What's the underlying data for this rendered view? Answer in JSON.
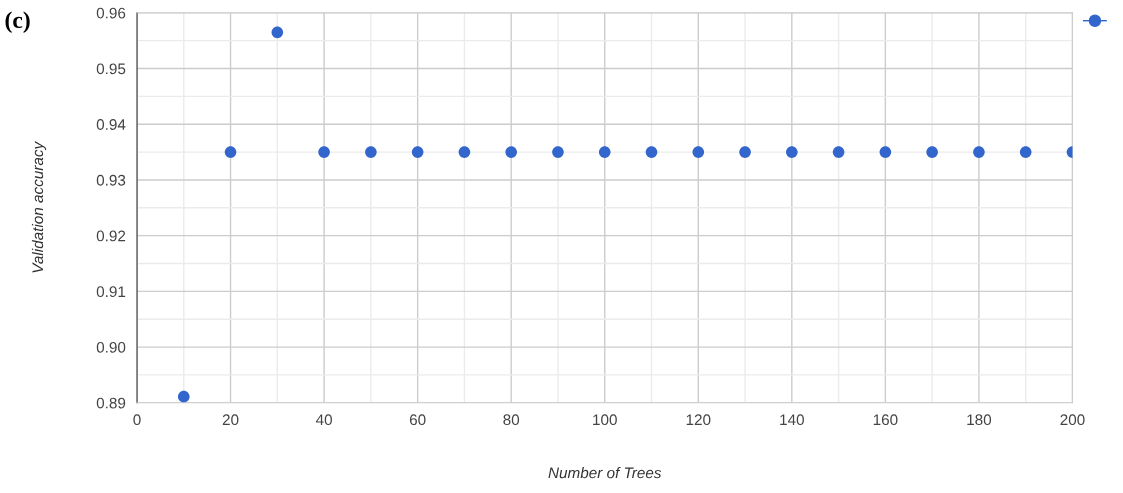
{
  "chart_data": {
    "type": "scatter",
    "xlabel": "Number of Trees",
    "ylabel": "Validation accuracy",
    "annotations": [
      "(c)"
    ],
    "x": [
      10,
      20,
      30,
      40,
      50,
      60,
      70,
      80,
      90,
      100,
      110,
      120,
      130,
      140,
      150,
      160,
      170,
      180,
      190,
      200
    ],
    "series": [
      {
        "color": "#3366cc",
        "values": [
          0.8911,
          0.935,
          0.9565,
          0.935,
          0.935,
          0.935,
          0.935,
          0.935,
          0.935,
          0.935,
          0.935,
          0.935,
          0.935,
          0.935,
          0.935,
          0.935,
          0.935,
          0.935,
          0.935,
          0.935
        ]
      }
    ],
    "xlim": [
      0,
      200
    ],
    "xticks": [
      0,
      20,
      40,
      60,
      80,
      100,
      120,
      140,
      160,
      180,
      200
    ],
    "ylim": [
      0.89,
      0.96
    ],
    "yticks": [
      {
        "value": 0.89,
        "label": "0.89"
      },
      {
        "value": 0.9,
        "label": "0.90"
      },
      {
        "value": 0.91,
        "label": "0.91"
      },
      {
        "value": 0.92,
        "label": "0.92"
      },
      {
        "value": 0.93,
        "label": "0.93"
      },
      {
        "value": 0.94,
        "label": "0.94"
      },
      {
        "value": 0.95,
        "label": "0.95"
      },
      {
        "value": 0.96,
        "label": "0.96"
      }
    ],
    "grid": true,
    "marker": "circle"
  }
}
